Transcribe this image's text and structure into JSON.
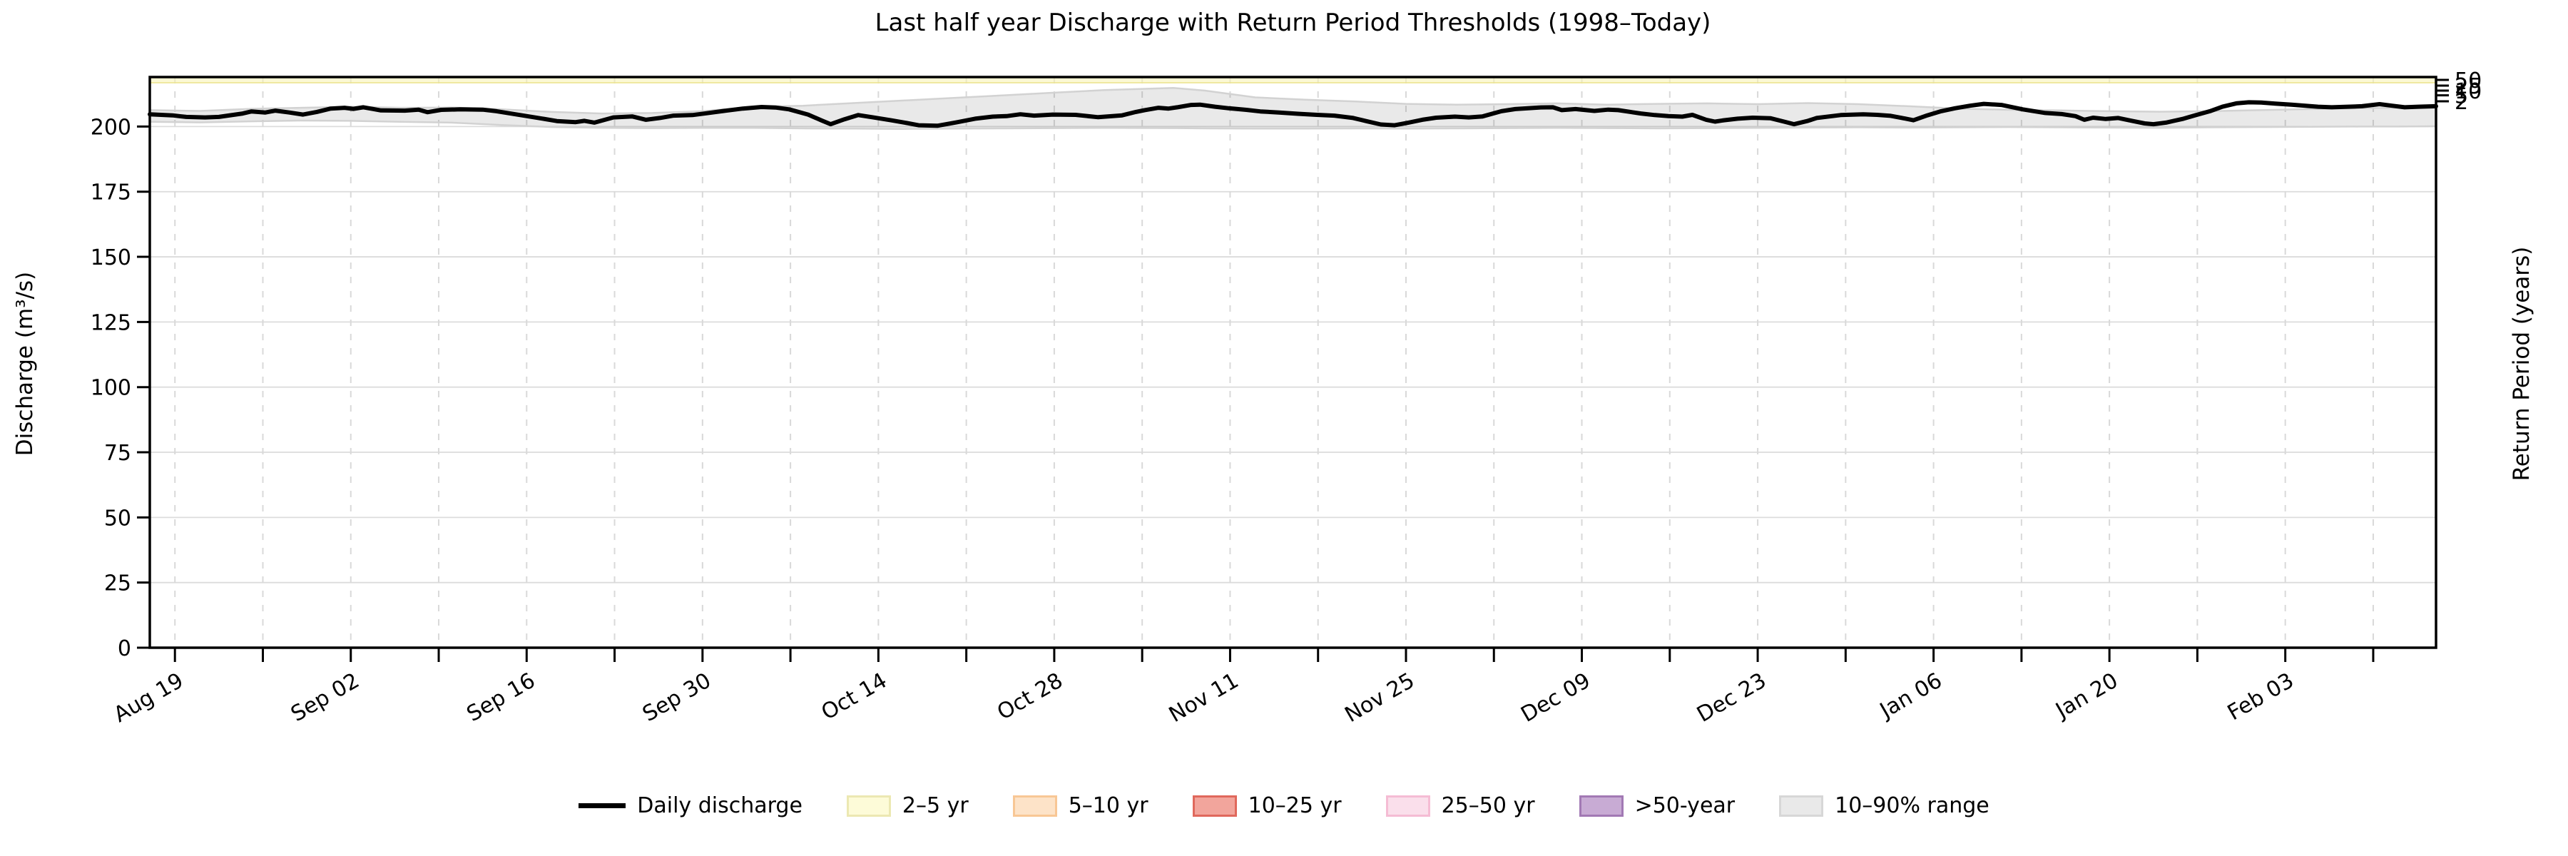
{
  "title": "Last half year Discharge with Return Period Thresholds (1998–Today)",
  "axes": {
    "ylabel_left": "Discharge (m³/s)",
    "ylabel_right": "Return Period (years)"
  },
  "legend": {
    "items": [
      {
        "label": "Daily discharge",
        "type": "line",
        "fill": "#000000",
        "edge": "#000000"
      },
      {
        "label": "2–5 yr",
        "type": "patch",
        "fill": "#fdfbd8",
        "edge": "#ecE8b2"
      },
      {
        "label": "5–10 yr",
        "type": "patch",
        "fill": "#fde3c8",
        "edge": "#f8c795"
      },
      {
        "label": "10–25 yr",
        "type": "patch",
        "fill": "#f2a59c",
        "edge": "#e0685c"
      },
      {
        "label": "25–50 yr",
        "type": "patch",
        "fill": "#fadfeb",
        "edge": "#f5bcd4"
      },
      {
        "label": ">50-year",
        "type": "patch",
        "fill": "#c8abd4",
        "edge": "#a279b4"
      },
      {
        "label": "10–90% range",
        "type": "patch",
        "fill": "#e9e9e9",
        "edge": "#d7d7d7"
      }
    ]
  },
  "chart_data": {
    "type": "line",
    "title": "Last half year Discharge with Return Period Thresholds (1998–Today)",
    "xlabel": "",
    "ylabel": "Discharge (m³/s)",
    "ylabel_right": "Return Period (years)",
    "ylim": [
      0,
      219
    ],
    "x_domain_days": [
      0,
      182
    ],
    "y_ticks": [
      0,
      25,
      50,
      75,
      100,
      125,
      150,
      175,
      200
    ],
    "grid": {
      "horizontal": "solid",
      "vertical": "dashed-weekly"
    },
    "legend_position": "bottom-center",
    "x_ticks": {
      "start_day": 2,
      "step_days": 7,
      "labels_every": 2,
      "labels": [
        "Aug 19",
        "Sep 02",
        "Sep 16",
        "Sep 30",
        "Oct 14",
        "Oct 28",
        "Nov 11",
        "Nov 25",
        "Dec 09",
        "Dec 23",
        "Jan 06",
        "Jan 20",
        "Feb 03"
      ]
    },
    "right_axis_ticks": [
      {
        "label": "50",
        "value": 217.9
      },
      {
        "label": "25",
        "value": 215.7
      },
      {
        "label": "10",
        "value": 213.8
      },
      {
        "label": "5",
        "value": 212.0
      },
      {
        "label": "2",
        "value": 209.7
      }
    ],
    "threshold_strip": {
      "name": "2–5 yr visible strip",
      "from": 216.8,
      "to": 218.9,
      "fill": "#f8f3b0",
      "fill_opacity": 0.55,
      "edge": "#ece48f"
    },
    "series": [
      {
        "name": "Daily discharge",
        "type": "line",
        "color": "#000000",
        "width": 6,
        "points": [
          [
            0,
            204.7
          ],
          [
            1.8,
            204.3
          ],
          [
            2.9,
            203.7
          ],
          [
            4.4,
            203.5
          ],
          [
            5.5,
            203.7
          ],
          [
            7.4,
            205.0
          ],
          [
            8.1,
            205.8
          ],
          [
            9.2,
            205.4
          ],
          [
            10,
            206.1
          ],
          [
            11.1,
            205.4
          ],
          [
            12.2,
            204.6
          ],
          [
            13.3,
            205.6
          ],
          [
            14.4,
            206.9
          ],
          [
            15.5,
            207.2
          ],
          [
            16.2,
            206.8
          ],
          [
            17,
            207.4
          ],
          [
            17.7,
            206.8
          ],
          [
            18.4,
            206.2
          ],
          [
            20.3,
            206.1
          ],
          [
            21.4,
            206.5
          ],
          [
            22.1,
            205.5
          ],
          [
            23.2,
            206.4
          ],
          [
            24.7,
            206.6
          ],
          [
            26.5,
            206.5
          ],
          [
            27.6,
            205.9
          ],
          [
            29.5,
            204.4
          ],
          [
            31.3,
            203.0
          ],
          [
            32.4,
            202.1
          ],
          [
            33.9,
            201.7
          ],
          [
            34.6,
            202.2
          ],
          [
            35.4,
            201.5
          ],
          [
            36.9,
            203.5
          ],
          [
            38.4,
            203.9
          ],
          [
            39.5,
            202.6
          ],
          [
            40.6,
            203.3
          ],
          [
            41.7,
            204.2
          ],
          [
            43.2,
            204.4
          ],
          [
            44.3,
            205.1
          ],
          [
            45.7,
            206.0
          ],
          [
            47.2,
            206.9
          ],
          [
            48.7,
            207.5
          ],
          [
            49.8,
            207.3
          ],
          [
            50.9,
            206.6
          ],
          [
            52.4,
            204.6
          ],
          [
            53.5,
            202.3
          ],
          [
            54.2,
            200.9
          ],
          [
            55.3,
            202.8
          ],
          [
            56.4,
            204.4
          ],
          [
            57.5,
            203.6
          ],
          [
            59,
            202.4
          ],
          [
            60.1,
            201.5
          ],
          [
            61.2,
            200.5
          ],
          [
            62.7,
            200.3
          ],
          [
            64.2,
            201.6
          ],
          [
            65.7,
            203.0
          ],
          [
            67.1,
            203.8
          ],
          [
            68.2,
            204.0
          ],
          [
            69.3,
            204.7
          ],
          [
            70.4,
            204.2
          ],
          [
            71.9,
            204.6
          ],
          [
            73.7,
            204.5
          ],
          [
            75.5,
            203.6
          ],
          [
            77.4,
            204.3
          ],
          [
            78.5,
            205.6
          ],
          [
            79.2,
            206.3
          ],
          [
            80.3,
            207.2
          ],
          [
            81.1,
            206.9
          ],
          [
            81.8,
            207.4
          ],
          [
            82.9,
            208.3
          ],
          [
            83.6,
            208.4
          ],
          [
            84.8,
            207.6
          ],
          [
            85.9,
            207.0
          ],
          [
            87.3,
            206.4
          ],
          [
            88.4,
            205.8
          ],
          [
            89.9,
            205.4
          ],
          [
            91.4,
            204.9
          ],
          [
            92.9,
            204.5
          ],
          [
            94.3,
            204.2
          ],
          [
            95.8,
            203.3
          ],
          [
            96.9,
            202.0
          ],
          [
            98,
            200.8
          ],
          [
            99.1,
            200.5
          ],
          [
            100.2,
            201.5
          ],
          [
            101.3,
            202.6
          ],
          [
            102.4,
            203.4
          ],
          [
            103.9,
            203.8
          ],
          [
            105,
            203.5
          ],
          [
            106.1,
            203.9
          ],
          [
            107.6,
            205.9
          ],
          [
            108.7,
            206.7
          ],
          [
            110.6,
            207.3
          ],
          [
            111.7,
            207.4
          ],
          [
            112.4,
            206.3
          ],
          [
            113.5,
            206.7
          ],
          [
            115,
            206.0
          ],
          [
            116.1,
            206.5
          ],
          [
            116.9,
            206.3
          ],
          [
            118,
            205.5
          ],
          [
            118.7,
            205.0
          ],
          [
            119.8,
            204.4
          ],
          [
            120.9,
            204.0
          ],
          [
            122,
            203.8
          ],
          [
            122.8,
            204.5
          ],
          [
            123.9,
            202.6
          ],
          [
            124.6,
            201.9
          ],
          [
            125.3,
            202.4
          ],
          [
            126.4,
            203.0
          ],
          [
            127.6,
            203.4
          ],
          [
            129,
            203.2
          ],
          [
            130.1,
            201.9
          ],
          [
            130.9,
            200.9
          ],
          [
            132,
            202.2
          ],
          [
            132.7,
            203.3
          ],
          [
            134.6,
            204.4
          ],
          [
            136.4,
            204.7
          ],
          [
            137.5,
            204.5
          ],
          [
            138.6,
            204.1
          ],
          [
            139.7,
            203.1
          ],
          [
            140.4,
            202.4
          ],
          [
            141.5,
            204.3
          ],
          [
            142.6,
            205.9
          ],
          [
            143.7,
            207.0
          ],
          [
            144.9,
            208.0
          ],
          [
            146,
            208.7
          ],
          [
            147.4,
            208.3
          ],
          [
            149.1,
            206.6
          ],
          [
            150.9,
            205.2
          ],
          [
            152.2,
            204.8
          ],
          [
            153.3,
            204.0
          ],
          [
            154,
            202.6
          ],
          [
            154.7,
            203.4
          ],
          [
            155.7,
            202.9
          ],
          [
            156.7,
            203.3
          ],
          [
            157.8,
            202.2
          ],
          [
            158.8,
            201.2
          ],
          [
            159.5,
            200.9
          ],
          [
            160.5,
            201.5
          ],
          [
            161.9,
            203.0
          ],
          [
            162.9,
            204.4
          ],
          [
            164,
            205.9
          ],
          [
            165,
            207.6
          ],
          [
            166.1,
            208.9
          ],
          [
            167.1,
            209.3
          ],
          [
            168.1,
            209.2
          ],
          [
            169.2,
            208.8
          ],
          [
            170.5,
            208.4
          ],
          [
            171.6,
            208.0
          ],
          [
            172.6,
            207.6
          ],
          [
            173.7,
            207.4
          ],
          [
            175,
            207.6
          ],
          [
            176.1,
            207.8
          ],
          [
            177.5,
            208.6
          ],
          [
            178.5,
            208.0
          ],
          [
            179.5,
            207.4
          ],
          [
            180.6,
            207.6
          ],
          [
            182,
            207.8
          ]
        ]
      },
      {
        "name": "10–90% range",
        "type": "band",
        "fill": "#000000",
        "fill_opacity": 0.085,
        "edge": "#d2d2d2",
        "points_day_lo_hi": [
          [
            0,
            201.8,
            206.3
          ],
          [
            4,
            201.6,
            206.0
          ],
          [
            8,
            202.0,
            206.8
          ],
          [
            12,
            202.3,
            207.2
          ],
          [
            16,
            202.2,
            207.6
          ],
          [
            20,
            201.8,
            207.2
          ],
          [
            24,
            201.5,
            207.3
          ],
          [
            28,
            200.6,
            206.6
          ],
          [
            32,
            199.8,
            205.6
          ],
          [
            36,
            199.5,
            205.0
          ],
          [
            40,
            199.4,
            205.2
          ],
          [
            44,
            199.5,
            205.9
          ],
          [
            48,
            199.5,
            207.6
          ],
          [
            52,
            199.3,
            208.0
          ],
          [
            56,
            199.2,
            209.0
          ],
          [
            60,
            199.1,
            210.0
          ],
          [
            64,
            199.2,
            211.0
          ],
          [
            68,
            199.3,
            212.0
          ],
          [
            72,
            199.4,
            213.0
          ],
          [
            76,
            199.5,
            214.0
          ],
          [
            81.5,
            199.4,
            214.8
          ],
          [
            84,
            199.3,
            213.8
          ],
          [
            88,
            199.2,
            211.2
          ],
          [
            92,
            199.2,
            210.3
          ],
          [
            96,
            199.3,
            209.6
          ],
          [
            100,
            199.2,
            208.7
          ],
          [
            104,
            199.3,
            208.4
          ],
          [
            108,
            199.4,
            208.6
          ],
          [
            112,
            199.5,
            208.9
          ],
          [
            116,
            199.4,
            208.4
          ],
          [
            120,
            199.3,
            208.7
          ],
          [
            124,
            199.4,
            208.9
          ],
          [
            128,
            199.5,
            208.6
          ],
          [
            132,
            199.6,
            209.0
          ],
          [
            136,
            199.7,
            208.6
          ],
          [
            140,
            199.6,
            207.8
          ],
          [
            144,
            199.7,
            206.9
          ],
          [
            148,
            199.8,
            206.4
          ],
          [
            152,
            199.7,
            206.2
          ],
          [
            156,
            199.6,
            205.9
          ],
          [
            160,
            199.5,
            205.7
          ],
          [
            164,
            199.7,
            205.9
          ],
          [
            168,
            199.8,
            206.3
          ],
          [
            172,
            199.9,
            206.7
          ],
          [
            176,
            200.0,
            207.0
          ],
          [
            179,
            200.0,
            207.2
          ],
          [
            182,
            200.1,
            207.4
          ]
        ]
      }
    ]
  }
}
